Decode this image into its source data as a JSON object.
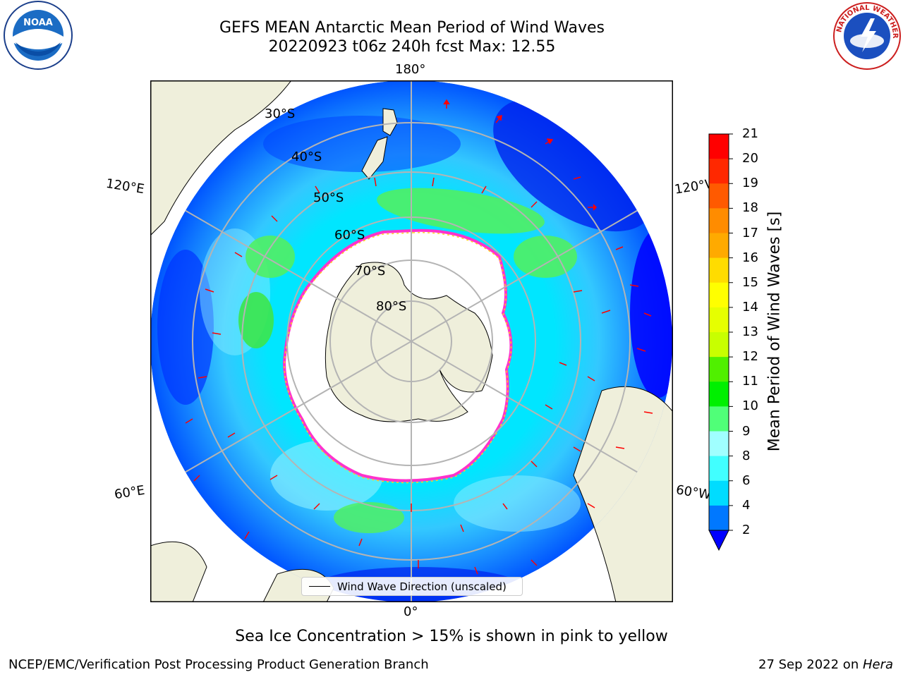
{
  "title_line1": "GEFS MEAN Antarctic Mean Period of Wind Waves",
  "title_line2": "20220923 t06z 240h fcst   Max: 12.55",
  "longitude_labels": {
    "lon_180": "180°",
    "lon_0": "0°",
    "lon_120e": "120°E",
    "lon_120w": "120°W",
    "lon_60e": "60°E",
    "lon_60w": "60°W"
  },
  "latitude_labels": [
    "30°S",
    "40°S",
    "50°S",
    "60°S",
    "70°S",
    "80°S"
  ],
  "legend_label": "Wind Wave Direction (unscaled)",
  "colorbar": {
    "label": "Mean Period of Wind Waves [s]",
    "ticks": [
      "2",
      "4",
      "6",
      "8",
      "9",
      "10",
      "11",
      "12",
      "13",
      "14",
      "15",
      "16",
      "17",
      "18",
      "19",
      "20",
      "21"
    ],
    "colors": [
      "#0000ff",
      "#0078ff",
      "#00dcff",
      "#41ffff",
      "#a0ffff",
      "#50ff78",
      "#00f000",
      "#50f000",
      "#c8ff00",
      "#e6ff00",
      "#ffff00",
      "#ffdc00",
      "#ffaa00",
      "#ff8c00",
      "#ff5a00",
      "#ff2800",
      "#ff0000"
    ]
  },
  "footer_note": "Sea Ice Concentration > 15% is shown in pink to yellow",
  "credit": "NCEP/EMC/Verification Post Processing Product Generation Branch",
  "date_prefix": "27 Sep 2022 on ",
  "date_host": "Hera",
  "logos": {
    "noaa_text": "NOAA",
    "nws_text": "NATIONAL WEATHER SERVICE"
  },
  "map_colors": {
    "land": "#efefdb",
    "ice_edge": "#ff33cc",
    "ice_fringe": "#ffd21e",
    "arrow": "#ff0000",
    "grid": "#b4b4b4"
  }
}
